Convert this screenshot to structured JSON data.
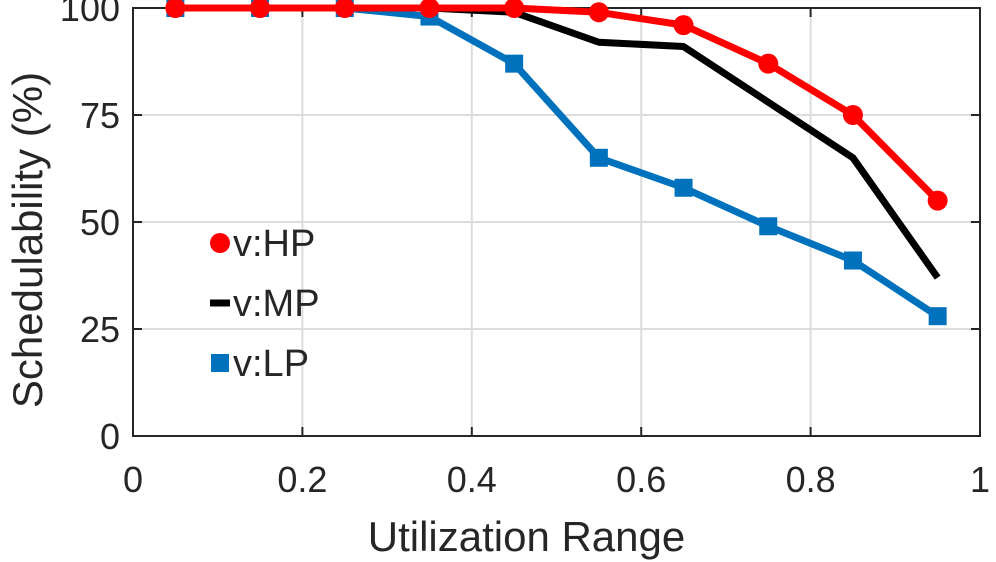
{
  "chart_data": {
    "type": "line",
    "title": "",
    "xlabel": "Utilization Range",
    "ylabel": "Schedulability (%)",
    "xlim": [
      0,
      1
    ],
    "ylim": [
      0,
      100
    ],
    "xticks": [
      0,
      0.2,
      0.4,
      0.6,
      0.8,
      1
    ],
    "xtick_labels": [
      "0",
      "0.2",
      "0.4",
      "0.6",
      "0.8",
      "1"
    ],
    "yticks": [
      0,
      25,
      50,
      75,
      100
    ],
    "ytick_labels": [
      "0",
      "25",
      "50",
      "75",
      "100"
    ],
    "grid": true,
    "legend_position": "left",
    "x": [
      0.05,
      0.15,
      0.25,
      0.35,
      0.45,
      0.55,
      0.65,
      0.75,
      0.85,
      0.95
    ],
    "series": [
      {
        "name": "v:HP",
        "color": "#ff0000",
        "marker": "circle",
        "values": [
          100,
          100,
          100,
          100,
          100,
          99,
          96,
          87,
          75,
          55
        ]
      },
      {
        "name": "v:MP",
        "color": "#000000",
        "marker": "none",
        "values": [
          100,
          100,
          100,
          100,
          99,
          92,
          91,
          78,
          65,
          37
        ]
      },
      {
        "name": "v:LP",
        "color": "#0072bd",
        "marker": "square",
        "values": [
          100,
          100,
          100,
          98,
          87,
          65,
          58,
          49,
          41,
          28
        ]
      }
    ]
  }
}
